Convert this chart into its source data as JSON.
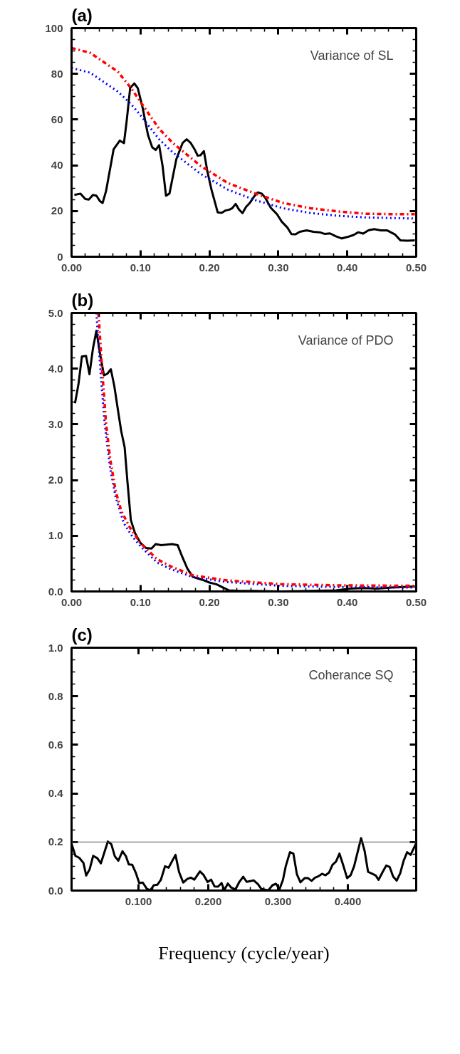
{
  "chart_data": [
    {
      "type": "line",
      "title": "(a)",
      "annotations": [
        "Variance of SL"
      ],
      "xlim": [
        0,
        0.5
      ],
      "ylim": [
        0,
        100
      ],
      "xticks": [
        {
          "value": 0,
          "label": "0.00"
        },
        {
          "value": 0.1,
          "label": "0.10"
        },
        {
          "value": 0.2,
          "label": "0.20"
        },
        {
          "value": 0.3,
          "label": "0.30"
        },
        {
          "value": 0.4,
          "label": "0.40"
        },
        {
          "value": 0.5,
          "label": "0.50"
        }
      ],
      "yticks": [
        0,
        20,
        40,
        60,
        80,
        100
      ],
      "grid": false,
      "series": [
        {
          "color": "#000000",
          "line_style": "solid",
          "x": [
            0.004,
            0.013,
            0.02,
            0.025,
            0.031,
            0.036,
            0.041,
            0.045,
            0.05,
            0.056,
            0.061,
            0.07,
            0.076,
            0.08,
            0.085,
            0.091,
            0.096,
            0.103,
            0.111,
            0.117,
            0.122,
            0.127,
            0.132,
            0.137,
            0.142,
            0.147,
            0.152,
            0.161,
            0.167,
            0.173,
            0.179,
            0.183,
            0.187,
            0.192,
            0.197,
            0.203,
            0.212,
            0.218,
            0.223,
            0.229,
            0.233,
            0.238,
            0.243,
            0.248,
            0.253,
            0.259,
            0.265,
            0.27,
            0.276,
            0.281,
            0.289,
            0.298,
            0.305,
            0.313,
            0.319,
            0.325,
            0.331,
            0.341,
            0.351,
            0.36,
            0.367,
            0.375,
            0.383,
            0.392,
            0.401,
            0.409,
            0.416,
            0.423,
            0.431,
            0.439,
            0.449,
            0.458,
            0.469,
            0.477,
            0.487,
            0.498
          ],
          "values": [
            27,
            27.6,
            25.2,
            25,
            27,
            26.7,
            24.4,
            23.5,
            28.7,
            38.6,
            47,
            50.8,
            49.7,
            59.5,
            73.8,
            75.8,
            73.8,
            65.3,
            53.1,
            47.9,
            46.7,
            48.8,
            39.8,
            26.7,
            27.6,
            35.1,
            42.7,
            49.7,
            51.4,
            49.7,
            46.7,
            44.2,
            44.4,
            46.2,
            37.4,
            29.3,
            19.4,
            19.2,
            20.2,
            20.6,
            21.2,
            23.1,
            20.6,
            19.1,
            21.7,
            23.7,
            26.4,
            28.1,
            27.6,
            25.8,
            21.4,
            18.6,
            15.3,
            12.8,
            9.9,
            9.8,
            10.9,
            11.5,
            10.9,
            10.7,
            10,
            10.2,
            9,
            8,
            8.7,
            9.5,
            10.7,
            10.1,
            11.6,
            12.1,
            11.5,
            11.5,
            9.8,
            7.2,
            7,
            7.2
          ]
        },
        {
          "color": "#ff0000",
          "line_style": "dashdot",
          "x": [
            0,
            0.027,
            0.067,
            0.087,
            0.1,
            0.127,
            0.147,
            0.187,
            0.227,
            0.267,
            0.307,
            0.347,
            0.387,
            0.427,
            0.467,
            0.498
          ],
          "values": [
            91.3,
            89.2,
            81,
            73.5,
            67.7,
            56,
            49.7,
            39.8,
            32.2,
            27.6,
            23.5,
            21.2,
            19.8,
            18.8,
            18.6,
            18.6
          ]
        },
        {
          "color": "#0000ff",
          "line_style": "dotted",
          "x": [
            0,
            0.027,
            0.067,
            0.087,
            0.1,
            0.127,
            0.147,
            0.187,
            0.227,
            0.267,
            0.307,
            0.347,
            0.387,
            0.427,
            0.498
          ],
          "values": [
            82.6,
            80.5,
            72.3,
            66.5,
            61.9,
            51.4,
            45.6,
            36.3,
            29.3,
            24.7,
            21.2,
            19.1,
            17.9,
            17.2,
            16.7
          ]
        }
      ]
    },
    {
      "type": "line",
      "title": "(b)",
      "annotations": [
        "Variance of PDO"
      ],
      "xlim": [
        0,
        0.5
      ],
      "ylim": [
        0,
        5
      ],
      "xticks": [
        {
          "value": 0,
          "label": "0.00"
        },
        {
          "value": 0.1,
          "label": "0.10"
        },
        {
          "value": 0.2,
          "label": "0.20"
        },
        {
          "value": 0.3,
          "label": "0.30"
        },
        {
          "value": 0.4,
          "label": "0.40"
        },
        {
          "value": 0.5,
          "label": "0.50"
        }
      ],
      "yticks": [
        {
          "value": 0,
          "label": "0.0"
        },
        {
          "value": 1,
          "label": "1.0"
        },
        {
          "value": 2,
          "label": "2.0"
        },
        {
          "value": 3,
          "label": "3.0"
        },
        {
          "value": 4,
          "label": "4.0"
        },
        {
          "value": 5,
          "label": "5.0"
        }
      ],
      "grid": false,
      "series": [
        {
          "color": "#000000",
          "line_style": "solid",
          "x": [
            0.005,
            0.01,
            0.015,
            0.021,
            0.026,
            0.031,
            0.036,
            0.042,
            0.047,
            0.052,
            0.057,
            0.062,
            0.068,
            0.072,
            0.077,
            0.081,
            0.086,
            0.092,
            0.1,
            0.108,
            0.116,
            0.122,
            0.13,
            0.138,
            0.146,
            0.154,
            0.16,
            0.168,
            0.176,
            0.184,
            0.192,
            0.2,
            0.21,
            0.22,
            0.228,
            0.244,
            0.264,
            0.304,
            0.344,
            0.384,
            0.404,
            0.424,
            0.444,
            0.464,
            0.498
          ],
          "values": [
            3.38,
            3.72,
            4.22,
            4.23,
            3.9,
            4.36,
            4.68,
            4.22,
            3.88,
            3.91,
            3.99,
            3.69,
            3.2,
            2.88,
            2.59,
            1.98,
            1.28,
            1.05,
            0.87,
            0.78,
            0.77,
            0.85,
            0.83,
            0.84,
            0.85,
            0.83,
            0.64,
            0.41,
            0.26,
            0.23,
            0.2,
            0.16,
            0.13,
            0.07,
            0.02,
            0.01,
            0.01,
            0,
            0.01,
            0.02,
            0.05,
            0.06,
            0.05,
            0.07,
            0.09
          ]
        },
        {
          "color": "#0000ff",
          "line_style": "dotted",
          "x": [
            0.036,
            0.042,
            0.048,
            0.056,
            0.064,
            0.076,
            0.088,
            0.1,
            0.124,
            0.144,
            0.176,
            0.224,
            0.304,
            0.384,
            0.5
          ],
          "values": [
            5.0,
            3.95,
            3.02,
            2.21,
            1.69,
            1.22,
            0.99,
            0.81,
            0.52,
            0.4,
            0.26,
            0.17,
            0.1,
            0.08,
            0.07
          ]
        },
        {
          "color": "#ff0000",
          "line_style": "dashdot",
          "x": [
            0.039,
            0.044,
            0.05,
            0.056,
            0.064,
            0.072,
            0.084,
            0.1,
            0.124,
            0.144,
            0.176,
            0.224,
            0.304,
            0.384,
            0.5
          ],
          "values": [
            5.0,
            4.04,
            3.02,
            2.38,
            1.8,
            1.45,
            1.16,
            0.87,
            0.58,
            0.45,
            0.29,
            0.2,
            0.13,
            0.11,
            0.1
          ]
        }
      ]
    },
    {
      "type": "line",
      "title": "(c)",
      "xlabel": "Frequency (cycle/year)",
      "annotations": [
        "Coherance SQ"
      ],
      "xlim": [
        0.004,
        0.498
      ],
      "ylim": [
        0,
        1
      ],
      "xticks": [
        {
          "value": 0.1,
          "label": "0.100"
        },
        {
          "value": 0.2,
          "label": "0.200"
        },
        {
          "value": 0.3,
          "label": "0.300"
        },
        {
          "value": 0.4,
          "label": "0.400"
        }
      ],
      "yticks": [
        {
          "value": 0,
          "label": "0.0"
        },
        {
          "value": 0.2,
          "label": "0.2"
        },
        {
          "value": 0.4,
          "label": "0.4"
        },
        {
          "value": 0.6,
          "label": "0.6"
        },
        {
          "value": 0.8,
          "label": "0.8"
        },
        {
          "value": 1,
          "label": "1.0"
        }
      ],
      "grid": false,
      "ref_lines": [
        {
          "axis": "y",
          "value": 0.2,
          "color": "#555555"
        }
      ],
      "series": [
        {
          "color": "#000000",
          "line_style": "solid",
          "x": [
            0.004,
            0.0095,
            0.015,
            0.021,
            0.025,
            0.03,
            0.035,
            0.041,
            0.046,
            0.056,
            0.061,
            0.066,
            0.071,
            0.077,
            0.082,
            0.086,
            0.091,
            0.096,
            0.101,
            0.106,
            0.112,
            0.117,
            0.122,
            0.127,
            0.132,
            0.138,
            0.143,
            0.153,
            0.158,
            0.164,
            0.17,
            0.175,
            0.18,
            0.188,
            0.193,
            0.199,
            0.204,
            0.209,
            0.214,
            0.219,
            0.223,
            0.228,
            0.233,
            0.239,
            0.244,
            0.25,
            0.255,
            0.265,
            0.271,
            0.276,
            0.286,
            0.292,
            0.297,
            0.302,
            0.307,
            0.311,
            0.317,
            0.322,
            0.327,
            0.332,
            0.338,
            0.343,
            0.348,
            0.353,
            0.358,
            0.363,
            0.368,
            0.373,
            0.378,
            0.383,
            0.388,
            0.393,
            0.399,
            0.404,
            0.409,
            0.414,
            0.419,
            0.424,
            0.429,
            0.435,
            0.44,
            0.444,
            0.45,
            0.455,
            0.46,
            0.465,
            0.47,
            0.475,
            0.48,
            0.485,
            0.49,
            0.498
          ],
          "values": [
            0.193,
            0.143,
            0.135,
            0.114,
            0.062,
            0.088,
            0.143,
            0.133,
            0.112,
            0.202,
            0.191,
            0.141,
            0.123,
            0.162,
            0.141,
            0.108,
            0.106,
            0.074,
            0.031,
            0.033,
            0.007,
            0.002,
            0.022,
            0.024,
            0.044,
            0.1,
            0.094,
            0.147,
            0.077,
            0.033,
            0.048,
            0.053,
            0.045,
            0.079,
            0.065,
            0.035,
            0.045,
            0.017,
            0.016,
            0.031,
            0.002,
            0.029,
            0.012,
            0.005,
            0.033,
            0.057,
            0.036,
            0.042,
            0.027,
            0.007,
            0.001,
            0.022,
            0.028,
            0.005,
            0.044,
            0.1,
            0.158,
            0.152,
            0.067,
            0.034,
            0.051,
            0.051,
            0.04,
            0.053,
            0.059,
            0.069,
            0.063,
            0.074,
            0.106,
            0.119,
            0.152,
            0.108,
            0.051,
            0.063,
            0.1,
            0.158,
            0.216,
            0.164,
            0.077,
            0.069,
            0.062,
            0.044,
            0.077,
            0.103,
            0.097,
            0.057,
            0.041,
            0.071,
            0.123,
            0.158,
            0.147,
            0.195
          ]
        }
      ]
    }
  ]
}
